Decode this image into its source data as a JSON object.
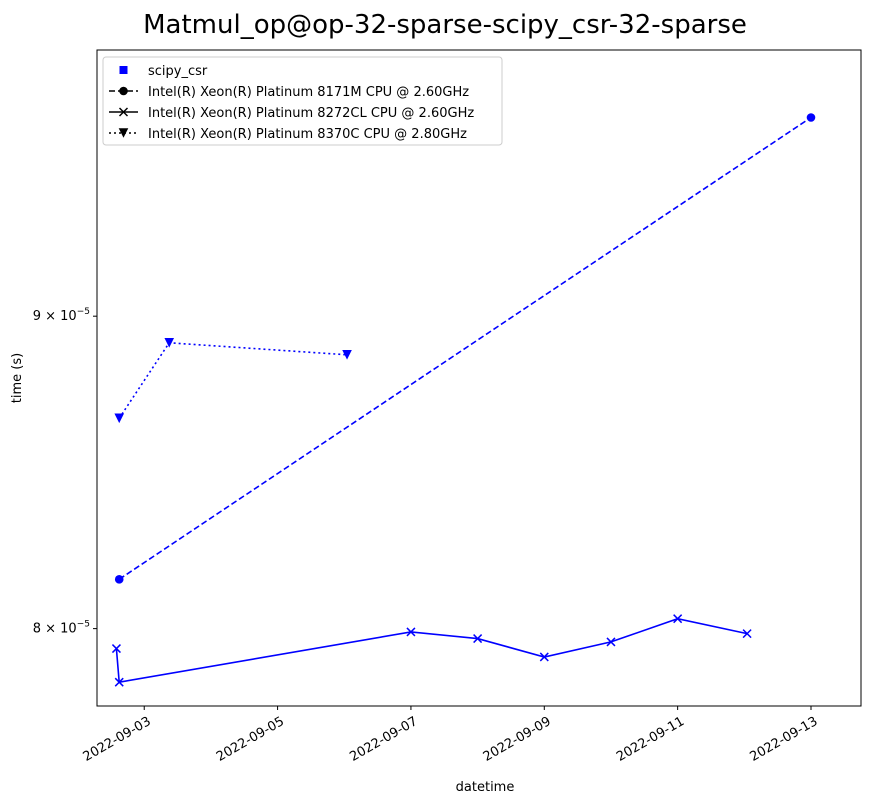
{
  "chart_data": {
    "type": "line",
    "title": "Matmul_op@op-32-sparse-scipy_csr-32-sparse",
    "xlabel": "datetime",
    "ylabel": "time (s)",
    "y_scale": "log",
    "xlim": [
      "2022-09-02T07:00",
      "2022-09-13T18:00"
    ],
    "ylim": [
      7.77e-05,
      9.95e-05
    ],
    "x_ticks": [
      "2022-09-03",
      "2022-09-05",
      "2022-09-07",
      "2022-09-09",
      "2022-09-11",
      "2022-09-13"
    ],
    "y_ticks": [
      {
        "value": 8e-05,
        "mantissa": "8",
        "base": "10",
        "exponent": "−5"
      },
      {
        "value": 9e-05,
        "mantissa": "9",
        "base": "10",
        "exponent": "−5"
      }
    ],
    "color": "#0000ff",
    "legend_position": "upper left",
    "legend": [
      {
        "label": "scipy_csr",
        "marker": "square",
        "dash": "none"
      },
      {
        "label": "Intel(R) Xeon(R) Platinum 8171M CPU @ 2.60GHz",
        "marker": "circle",
        "dash": "dashed"
      },
      {
        "label": "Intel(R) Xeon(R) Platinum 8272CL CPU @ 2.60GHz",
        "marker": "x",
        "dash": "solid"
      },
      {
        "label": "Intel(R) Xeon(R) Platinum 8370C CPU @ 2.80GHz",
        "marker": "triangle-down",
        "dash": "dotted"
      }
    ],
    "series": [
      {
        "name": "Intel(R) Xeon(R) Platinum 8171M CPU @ 2.60GHz",
        "marker": "circle",
        "dash": "dashed",
        "x": [
          "2022-09-02T15:00",
          "2022-09-13T00:00"
        ],
        "y": [
          8.15e-05,
          9.7e-05
        ]
      },
      {
        "name": "Intel(R) Xeon(R) Platinum 8272CL CPU @ 2.60GHz",
        "marker": "x",
        "dash": "solid",
        "x": [
          "2022-09-02T14:00",
          "2022-09-02T15:00",
          "2022-09-07T00:00",
          "2022-09-08T00:00",
          "2022-09-09T00:00",
          "2022-09-10T00:00",
          "2022-09-11T00:00",
          "2022-09-12T01:00"
        ],
        "y": [
          7.94e-05,
          7.84e-05,
          7.99e-05,
          7.97e-05,
          7.915e-05,
          7.96e-05,
          8.03e-05,
          7.985e-05
        ]
      },
      {
        "name": "Intel(R) Xeon(R) Platinum 8370C CPU @ 2.80GHz",
        "marker": "triangle-down",
        "dash": "dotted",
        "x": [
          "2022-09-02T15:00",
          "2022-09-03T09:00",
          "2022-09-06T01:00"
        ],
        "y": [
          8.66e-05,
          8.91e-05,
          8.87e-05
        ]
      }
    ]
  }
}
